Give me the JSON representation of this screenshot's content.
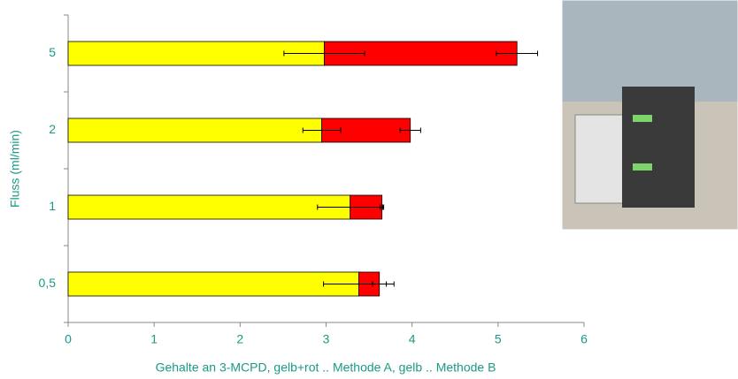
{
  "chart_data": {
    "type": "stacked-hbar",
    "x_label": "Gehalte an 3-MCPD, gelb+rot .. Methode A, gelb .. Methode B",
    "y_label": "Fluss (ml/min)",
    "categories": [
      "0,5",
      "1",
      "2",
      "5"
    ],
    "series": [
      {
        "color": "#ffff00",
        "values": [
          3.38,
          3.28,
          2.95,
          2.98
        ],
        "errors": [
          0.41,
          0.38,
          0.22,
          0.47
        ]
      },
      {
        "color": "#ff0000",
        "values": [
          0.24,
          0.37,
          1.03,
          2.24
        ],
        "errors": [
          0.08,
          0.02,
          0.12,
          0.24
        ]
      }
    ],
    "xlim": [
      0,
      6
    ],
    "xticks": [
      0,
      1,
      2,
      3,
      4,
      5,
      6
    ]
  }
}
